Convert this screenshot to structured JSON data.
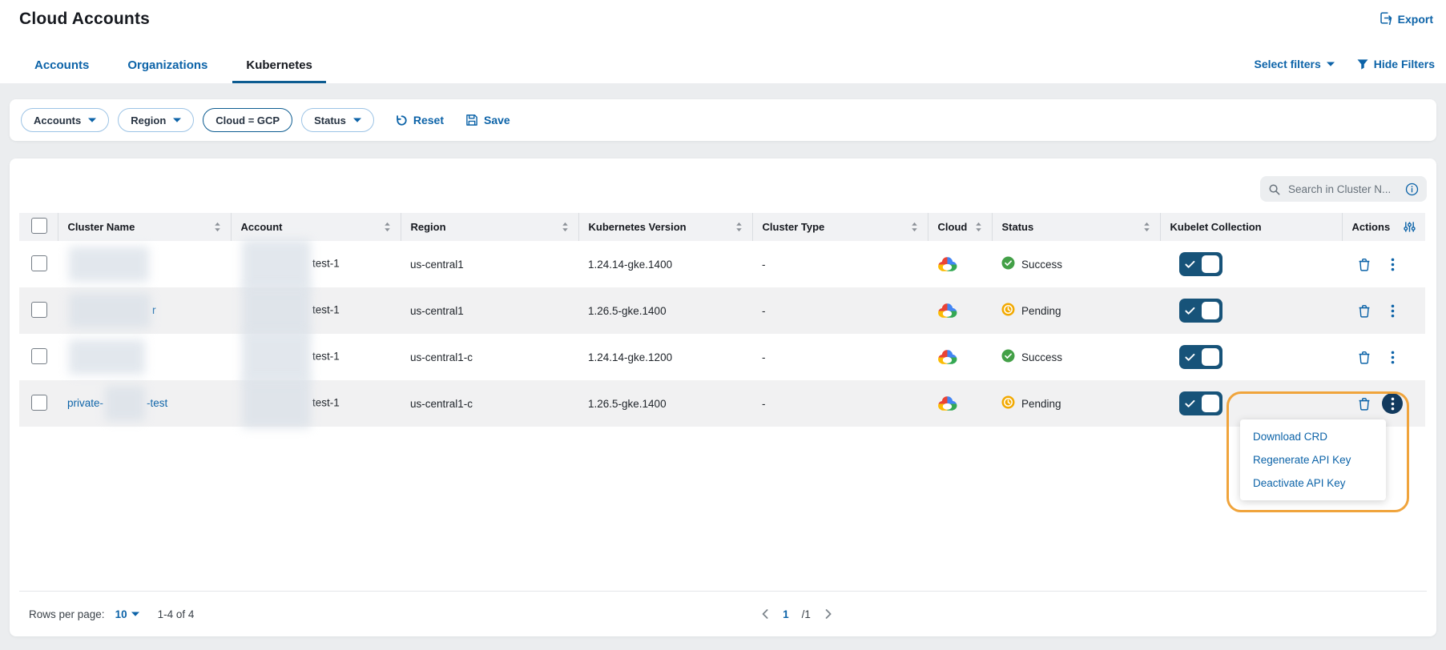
{
  "colors": {
    "primary": "#0C63A8",
    "toggle": "#175379",
    "navy": "#123A5E",
    "annotation": "#F0A43C",
    "underline": "#0D5C91",
    "success": "#43A047",
    "pending": "#F2A900",
    "gcp-blue": "#4285F4",
    "gcp-red": "#EA4335",
    "gcp-yellow": "#FBBC05",
    "gcp-green": "#34A853"
  },
  "header": {
    "title": "Cloud Accounts",
    "export_label": "Export"
  },
  "tabs": [
    {
      "label": "Accounts",
      "active": false
    },
    {
      "label": "Organizations",
      "active": false
    },
    {
      "label": "Kubernetes",
      "active": true
    }
  ],
  "filters_toolbar": {
    "select_filters_label": "Select filters",
    "hide_filters_label": "Hide Filters"
  },
  "filter_bar": {
    "chips": [
      {
        "label": "Accounts",
        "has_caret": true,
        "active": false
      },
      {
        "label": "Region",
        "has_caret": true,
        "active": false
      },
      {
        "label": "Cloud = GCP",
        "has_caret": false,
        "active": true
      },
      {
        "label": "Status",
        "has_caret": true,
        "active": false
      }
    ],
    "reset_label": "Reset",
    "save_label": "Save"
  },
  "search": {
    "placeholder": "Search in Cluster N..."
  },
  "table": {
    "columns": [
      {
        "label": "",
        "type": "checkbox"
      },
      {
        "label": "Cluster Name",
        "sortable": true
      },
      {
        "label": "Account",
        "sortable": true
      },
      {
        "label": "Region",
        "sortable": true
      },
      {
        "label": "Kubernetes Version",
        "sortable": true
      },
      {
        "label": "Cluster Type",
        "sortable": true
      },
      {
        "label": "Cloud",
        "sortable": true
      },
      {
        "label": "Status",
        "sortable": true
      },
      {
        "label": "Kubelet Collection",
        "sortable": false
      },
      {
        "label": "Actions",
        "sortable": false,
        "settings_icon": true
      }
    ],
    "rows": [
      {
        "name_parts": [
          {
            "redact": 100
          }
        ],
        "name_is_link": true,
        "account_parts": [
          {
            "redact": 86
          },
          {
            "text": "test-1"
          }
        ],
        "region": "us-central1",
        "kubernetes_version": "1.24.14-gke.1400",
        "cluster_type": "-",
        "cloud": "gcp",
        "status": {
          "label": "Success",
          "kind": "success"
        },
        "kubelet_collection_on": true,
        "menu_open": false
      },
      {
        "name_parts": [
          {
            "redact": 102
          },
          {
            "text": "r"
          }
        ],
        "name_is_link": true,
        "account_parts": [
          {
            "redact": 86
          },
          {
            "text": "test-1"
          }
        ],
        "region": "us-central1",
        "kubernetes_version": "1.26.5-gke.1400",
        "cluster_type": "-",
        "cloud": "gcp",
        "status": {
          "label": "Pending",
          "kind": "pending"
        },
        "kubelet_collection_on": true,
        "menu_open": false
      },
      {
        "name_parts": [
          {
            "redact": 95
          }
        ],
        "name_is_link": true,
        "account_parts": [
          {
            "redact": 86
          },
          {
            "text": "test-1"
          }
        ],
        "region": "us-central1-c",
        "kubernetes_version": "1.24.14-gke.1200",
        "cluster_type": "-",
        "cloud": "gcp",
        "status": {
          "label": "Success",
          "kind": "success"
        },
        "kubelet_collection_on": true,
        "menu_open": false
      },
      {
        "name_parts": [
          {
            "text": "private-"
          },
          {
            "redact": 50
          },
          {
            "text": "-test"
          }
        ],
        "name_is_link": true,
        "account_parts": [
          {
            "redact": 86
          },
          {
            "text": "test-1"
          }
        ],
        "region": "us-central1-c",
        "kubernetes_version": "1.26.5-gke.1400",
        "cluster_type": "-",
        "cloud": "gcp",
        "status": {
          "label": "Pending",
          "kind": "pending"
        },
        "kubelet_collection_on": true,
        "menu_open": true
      }
    ]
  },
  "actions_menu": {
    "items": [
      {
        "label": "Download CRD"
      },
      {
        "label": "Regenerate API Key"
      },
      {
        "label": "Deactivate API Key"
      }
    ]
  },
  "pagination": {
    "rows_per_page_label": "Rows per page:",
    "rows_per_page_value": "10",
    "range_label": "1-4 of 4",
    "current_page": "1",
    "total_pages_label": "/1"
  }
}
